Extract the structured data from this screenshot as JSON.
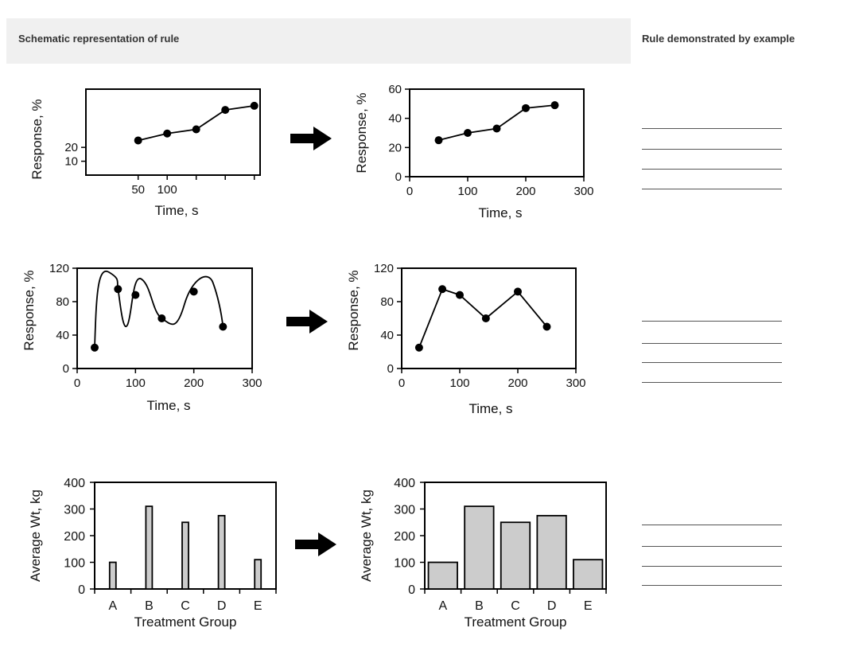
{
  "header": {
    "left_title": "Schematic representation of rule",
    "right_title": "Rule demonstrated by example"
  },
  "chart_data": [
    {
      "id": "row1-before",
      "type": "line",
      "title": "",
      "xlabel": "Time, s",
      "ylabel": "Response, %",
      "x": [
        50,
        100,
        150,
        200,
        250
      ],
      "values": [
        25,
        30,
        33,
        47,
        50
      ],
      "xlim": [
        -40,
        260
      ],
      "ylim": [
        0,
        62
      ],
      "xticks": [
        "50",
        "100"
      ],
      "yticks": [
        "10",
        "20"
      ]
    },
    {
      "id": "row1-after",
      "type": "line",
      "title": "",
      "xlabel": "Time, s",
      "ylabel": "Response, %",
      "x": [
        50,
        100,
        150,
        200,
        250
      ],
      "values": [
        25,
        30,
        33,
        47,
        49
      ],
      "xlim": [
        0,
        300
      ],
      "ylim": [
        0,
        60
      ],
      "xticks": [
        "0",
        "100",
        "200",
        "300"
      ],
      "yticks": [
        "0",
        "20",
        "40",
        "60"
      ]
    },
    {
      "id": "row2-before",
      "type": "line",
      "title": "",
      "xlabel": "Time, s",
      "ylabel": "Response, %",
      "x": [
        30,
        70,
        100,
        145,
        200,
        250
      ],
      "values": [
        25,
        95,
        88,
        60,
        92,
        50
      ],
      "curve": "smoothed",
      "xlim": [
        0,
        300
      ],
      "ylim": [
        0,
        120
      ],
      "xticks": [
        "0",
        "100",
        "200",
        "300"
      ],
      "yticks": [
        "0",
        "40",
        "80",
        "120"
      ]
    },
    {
      "id": "row2-after",
      "type": "line",
      "title": "",
      "xlabel": "Time, s",
      "ylabel": "Response, %",
      "x": [
        30,
        70,
        100,
        145,
        200,
        250
      ],
      "values": [
        25,
        95,
        88,
        60,
        92,
        50
      ],
      "xlim": [
        0,
        300
      ],
      "ylim": [
        0,
        120
      ],
      "xticks": [
        "0",
        "100",
        "200",
        "300"
      ],
      "yticks": [
        "0",
        "40",
        "80",
        "120"
      ]
    },
    {
      "id": "row3-before",
      "type": "bar",
      "title": "",
      "xlabel": "Treatment Group",
      "ylabel": "Average Wt, kg",
      "categories": [
        "A",
        "B",
        "C",
        "D",
        "E"
      ],
      "values": [
        100,
        310,
        250,
        275,
        110
      ],
      "bar_style": "narrow",
      "ylim": [
        0,
        400
      ],
      "yticks": [
        "0",
        "100",
        "200",
        "300",
        "400"
      ]
    },
    {
      "id": "row3-after",
      "type": "bar",
      "title": "",
      "xlabel": "Treatment Group",
      "ylabel": "Average Wt, kg",
      "categories": [
        "A",
        "B",
        "C",
        "D",
        "E"
      ],
      "values": [
        100,
        310,
        250,
        275,
        110
      ],
      "bar_style": "wide",
      "ylim": [
        0,
        400
      ],
      "yticks": [
        "0",
        "100",
        "200",
        "300",
        "400"
      ]
    }
  ],
  "colors": {
    "bar_fill": "#cccccc",
    "ink": "#000000",
    "header_bg": "#f0f0f0"
  },
  "icons": {
    "arrow": "right-arrow-icon"
  }
}
